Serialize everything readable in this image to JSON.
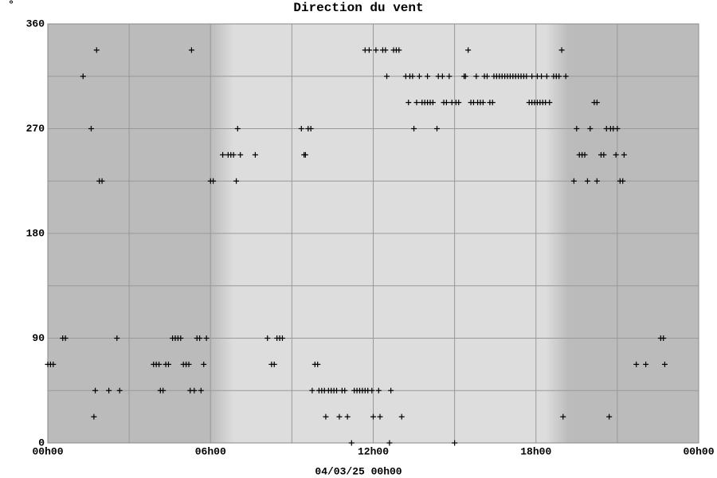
{
  "chart_data": {
    "type": "scatter",
    "title": "Direction du vent",
    "y_label": "°",
    "x_label": "04/03/25 00h00",
    "xlim": [
      0,
      24
    ],
    "xticks": [
      {
        "value": 0,
        "label": "00h00"
      },
      {
        "value": 6,
        "label": "06h00"
      },
      {
        "value": 12,
        "label": "12h00"
      },
      {
        "value": 18,
        "label": "18h00"
      },
      {
        "value": 24,
        "label": "00h00"
      }
    ],
    "xminor": [
      3,
      9,
      15,
      21
    ],
    "ylim": [
      0,
      360
    ],
    "yticks": [
      0,
      90,
      180,
      270,
      360
    ],
    "yminor": [
      45,
      135,
      225,
      315
    ],
    "grid": true,
    "color": "#000000",
    "x": [
      0.0,
      0.1,
      0.2,
      0.55,
      0.65,
      1.3,
      1.6,
      1.7,
      1.75,
      1.8,
      1.9,
      2.0,
      2.25,
      2.55,
      2.65,
      3.9,
      4.0,
      4.1,
      4.15,
      4.25,
      4.35,
      4.45,
      4.6,
      4.7,
      4.8,
      4.9,
      5.0,
      5.1,
      5.2,
      5.25,
      5.3,
      5.4,
      5.5,
      5.6,
      5.65,
      5.75,
      5.85,
      6.0,
      6.1,
      6.45,
      6.65,
      6.75,
      6.85,
      6.95,
      7.0,
      7.1,
      7.65,
      8.1,
      8.25,
      8.35,
      8.45,
      8.55,
      8.65,
      9.35,
      9.45,
      9.5,
      9.6,
      9.7,
      9.75,
      9.85,
      9.95,
      10.0,
      10.1,
      10.2,
      10.25,
      10.35,
      10.45,
      10.55,
      10.65,
      10.75,
      10.85,
      10.95,
      11.05,
      11.2,
      11.3,
      11.4,
      11.5,
      11.6,
      11.7,
      11.8,
      11.95,
      11.7,
      11.85,
      12.0,
      12.1,
      12.2,
      12.25,
      12.35,
      12.45,
      12.5,
      12.6,
      12.65,
      12.75,
      12.85,
      12.95,
      13.05,
      13.2,
      13.3,
      13.35,
      13.45,
      13.5,
      13.6,
      13.7,
      13.8,
      13.9,
      14.0,
      14.0,
      14.1,
      14.2,
      14.35,
      14.4,
      14.55,
      14.6,
      14.7,
      14.8,
      14.9,
      15.0,
      15.05,
      15.15,
      15.35,
      15.4,
      15.5,
      15.6,
      15.7,
      15.8,
      15.85,
      15.95,
      16.05,
      16.1,
      16.2,
      16.3,
      16.4,
      16.45,
      16.55,
      16.65,
      16.75,
      16.85,
      16.95,
      17.05,
      17.15,
      17.25,
      17.35,
      17.45,
      17.55,
      17.65,
      17.75,
      17.85,
      17.95,
      18.05,
      18.15,
      18.25,
      18.35,
      18.5,
      17.85,
      18.05,
      18.2,
      18.4,
      18.65,
      18.75,
      18.85,
      18.95,
      19.0,
      19.1,
      19.4,
      19.5,
      19.6,
      19.7,
      19.8,
      19.9,
      20.0,
      20.15,
      20.25,
      20.25,
      20.4,
      20.5,
      20.6,
      20.7,
      20.75,
      20.85,
      20.95,
      21.0,
      21.1,
      21.2,
      21.25,
      21.7,
      22.05,
      22.6,
      22.7,
      22.75
    ],
    "values": [
      67.5,
      67.5,
      67.5,
      90,
      90,
      315,
      270,
      22.5,
      45,
      337.5,
      225,
      225,
      45,
      90,
      45,
      67.5,
      67.5,
      67.5,
      45,
      45,
      67.5,
      67.5,
      90,
      90,
      90,
      90,
      67.5,
      67.5,
      67.5,
      45,
      337.5,
      45,
      90,
      90,
      45,
      67.5,
      90,
      225,
      225,
      247.5,
      247.5,
      247.5,
      247.5,
      225,
      270,
      247.5,
      247.5,
      90,
      67.5,
      67.5,
      90,
      90,
      90,
      270,
      247.5,
      247.5,
      270,
      270,
      45,
      67.5,
      67.5,
      45,
      45,
      45,
      22.5,
      45,
      45,
      45,
      45,
      22.5,
      45,
      45,
      22.5,
      0,
      45,
      45,
      45,
      45,
      45,
      45,
      45,
      337.5,
      337.5,
      22.5,
      337.5,
      45,
      22.5,
      337.5,
      337.5,
      315,
      0,
      45,
      337.5,
      337.5,
      337.5,
      22.5,
      315,
      292.5,
      315,
      315,
      270,
      292.5,
      315,
      292.5,
      292.5,
      315,
      292.5,
      292.5,
      292.5,
      270,
      315,
      315,
      292.5,
      292.5,
      315,
      292.5,
      0,
      292.5,
      292.5,
      315,
      315,
      337.5,
      292.5,
      292.5,
      315,
      292.5,
      292.5,
      292.5,
      315,
      315,
      292.5,
      292.5,
      315,
      315,
      315,
      315,
      315,
      315,
      315,
      315,
      315,
      315,
      315,
      315,
      315,
      292.5,
      292.5,
      292.5,
      292.5,
      292.5,
      292.5,
      292.5,
      292.5,
      315,
      315,
      315,
      315,
      315,
      315,
      315,
      337.5,
      22.5,
      315,
      225,
      270,
      247.5,
      247.5,
      247.5,
      225,
      270,
      292.5,
      292.5,
      225,
      247.5,
      247.5,
      270,
      22.5,
      270,
      270,
      247.5,
      270,
      225,
      225,
      247.5,
      67.5,
      67.5,
      90,
      90,
      67.5
    ]
  }
}
